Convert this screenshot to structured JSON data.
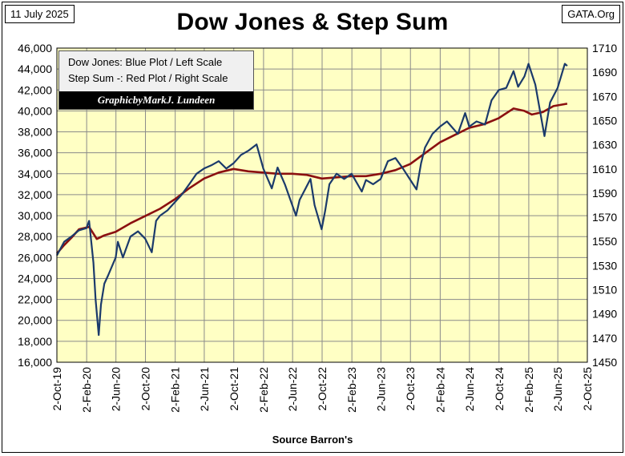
{
  "header": {
    "date": "11 July 2025",
    "source": "GATA.Org",
    "title": "Dow Jones & Step Sum"
  },
  "legend": {
    "line1": "Dow Jones: Blue Plot / Left Scale",
    "line2": "Step Sum -: Red Plot / Right Scale",
    "credit": "GraphicbyMarkJ. Lundeen"
  },
  "colors": {
    "plot_bg": "#ffffc4",
    "grid": "#8a8a8a",
    "dow": "#1b3a6b",
    "stepsum": "#8b1010"
  },
  "chart_data": {
    "type": "line",
    "title": "Dow Jones & Step Sum",
    "xlabel": "Source Barron's",
    "grid": true,
    "legend_position": "top-left",
    "x_ticks": [
      "2-Oct-19",
      "2-Feb-20",
      "2-Jun-20",
      "2-Oct-20",
      "2-Feb-21",
      "2-Jun-21",
      "2-Oct-21",
      "2-Feb-22",
      "2-Jun-22",
      "2-Oct-22",
      "2-Feb-23",
      "2-Jun-23",
      "2-Oct-23",
      "2-Feb-24",
      "2-Jun-24",
      "2-Oct-24",
      "2-Feb-25",
      "2-Jun-25",
      "2-Oct-25"
    ],
    "y_left": {
      "label": "Dow Jones",
      "min": 16000,
      "max": 46000,
      "step": 2000
    },
    "y_right": {
      "label": "Step Sum",
      "min": 1450,
      "max": 1710,
      "step": 20
    },
    "series": [
      {
        "name": "Dow Jones",
        "axis": "left",
        "x": [
          "2019-10-02",
          "2019-11-01",
          "2019-12-01",
          "2020-01-01",
          "2020-02-01",
          "2020-02-12",
          "2020-03-01",
          "2020-03-10",
          "2020-03-23",
          "2020-04-01",
          "2020-04-15",
          "2020-05-01",
          "2020-06-01",
          "2020-06-10",
          "2020-07-01",
          "2020-08-01",
          "2020-09-01",
          "2020-10-01",
          "2020-10-28",
          "2020-11-15",
          "2020-12-01",
          "2021-01-01",
          "2021-02-01",
          "2021-03-01",
          "2021-04-01",
          "2021-05-01",
          "2021-06-01",
          "2021-07-01",
          "2021-08-01",
          "2021-09-01",
          "2021-10-01",
          "2021-11-01",
          "2021-12-01",
          "2022-01-04",
          "2022-02-01",
          "2022-03-08",
          "2022-04-01",
          "2022-05-01",
          "2022-06-16",
          "2022-07-01",
          "2022-08-15",
          "2022-09-01",
          "2022-09-30",
          "2022-10-15",
          "2022-11-01",
          "2022-12-01",
          "2023-01-01",
          "2023-02-01",
          "2023-03-15",
          "2023-04-01",
          "2023-05-01",
          "2023-06-01",
          "2023-07-01",
          "2023-08-01",
          "2023-09-01",
          "2023-10-27",
          "2023-11-15",
          "2023-12-01",
          "2024-01-01",
          "2024-02-01",
          "2024-03-01",
          "2024-04-15",
          "2024-05-15",
          "2024-06-01",
          "2024-07-01",
          "2024-08-05",
          "2024-09-01",
          "2024-10-01",
          "2024-11-01",
          "2024-12-01",
          "2024-12-20",
          "2025-01-15",
          "2025-02-01",
          "2025-03-01",
          "2025-04-08",
          "2025-04-20",
          "2025-05-01",
          "2025-06-01",
          "2025-07-01",
          "2025-07-11"
        ],
        "values": [
          26200,
          27500,
          28000,
          28600,
          28800,
          29500,
          25500,
          22000,
          18600,
          21500,
          23500,
          24300,
          26000,
          27500,
          26000,
          28000,
          28500,
          27800,
          26500,
          29500,
          30000,
          30500,
          31300,
          32000,
          33000,
          34000,
          34500,
          34800,
          35200,
          34500,
          35000,
          35800,
          36200,
          36800,
          34500,
          32600,
          34600,
          33000,
          30000,
          31500,
          33500,
          31000,
          28700,
          30500,
          33000,
          34000,
          33500,
          34000,
          32300,
          33400,
          33000,
          33500,
          35200,
          35500,
          34500,
          32500,
          35000,
          36500,
          37800,
          38500,
          39000,
          37800,
          39800,
          38500,
          39000,
          38700,
          41000,
          42000,
          42200,
          43800,
          42300,
          43300,
          44500,
          42500,
          37600,
          39300,
          40800,
          42200,
          44500,
          44300
        ]
      },
      {
        "name": "Step Sum",
        "axis": "right",
        "x": [
          "2019-10-02",
          "2019-11-01",
          "2019-12-01",
          "2020-01-01",
          "2020-02-12",
          "2020-03-15",
          "2020-04-15",
          "2020-06-01",
          "2020-08-01",
          "2020-10-01",
          "2020-12-01",
          "2021-02-01",
          "2021-04-01",
          "2021-06-01",
          "2021-08-01",
          "2021-10-01",
          "2021-12-01",
          "2022-02-01",
          "2022-04-01",
          "2022-06-01",
          "2022-08-01",
          "2022-10-01",
          "2022-12-01",
          "2023-02-01",
          "2023-04-01",
          "2023-06-01",
          "2023-08-01",
          "2023-10-01",
          "2023-12-01",
          "2024-02-01",
          "2024-04-01",
          "2024-06-01",
          "2024-08-01",
          "2024-10-01",
          "2024-12-01",
          "2025-01-15",
          "2025-02-15",
          "2025-04-01",
          "2025-05-15",
          "2025-07-11"
        ],
        "values": [
          1540,
          1547,
          1553,
          1560,
          1562,
          1552,
          1555,
          1558,
          1565,
          1571,
          1577,
          1585,
          1594,
          1602,
          1607,
          1610,
          1608,
          1607,
          1606,
          1606,
          1605,
          1602,
          1603,
          1604,
          1604,
          1606,
          1609,
          1614,
          1623,
          1632,
          1638,
          1644,
          1647,
          1652,
          1660,
          1658,
          1655,
          1657,
          1662,
          1664
        ]
      }
    ]
  }
}
